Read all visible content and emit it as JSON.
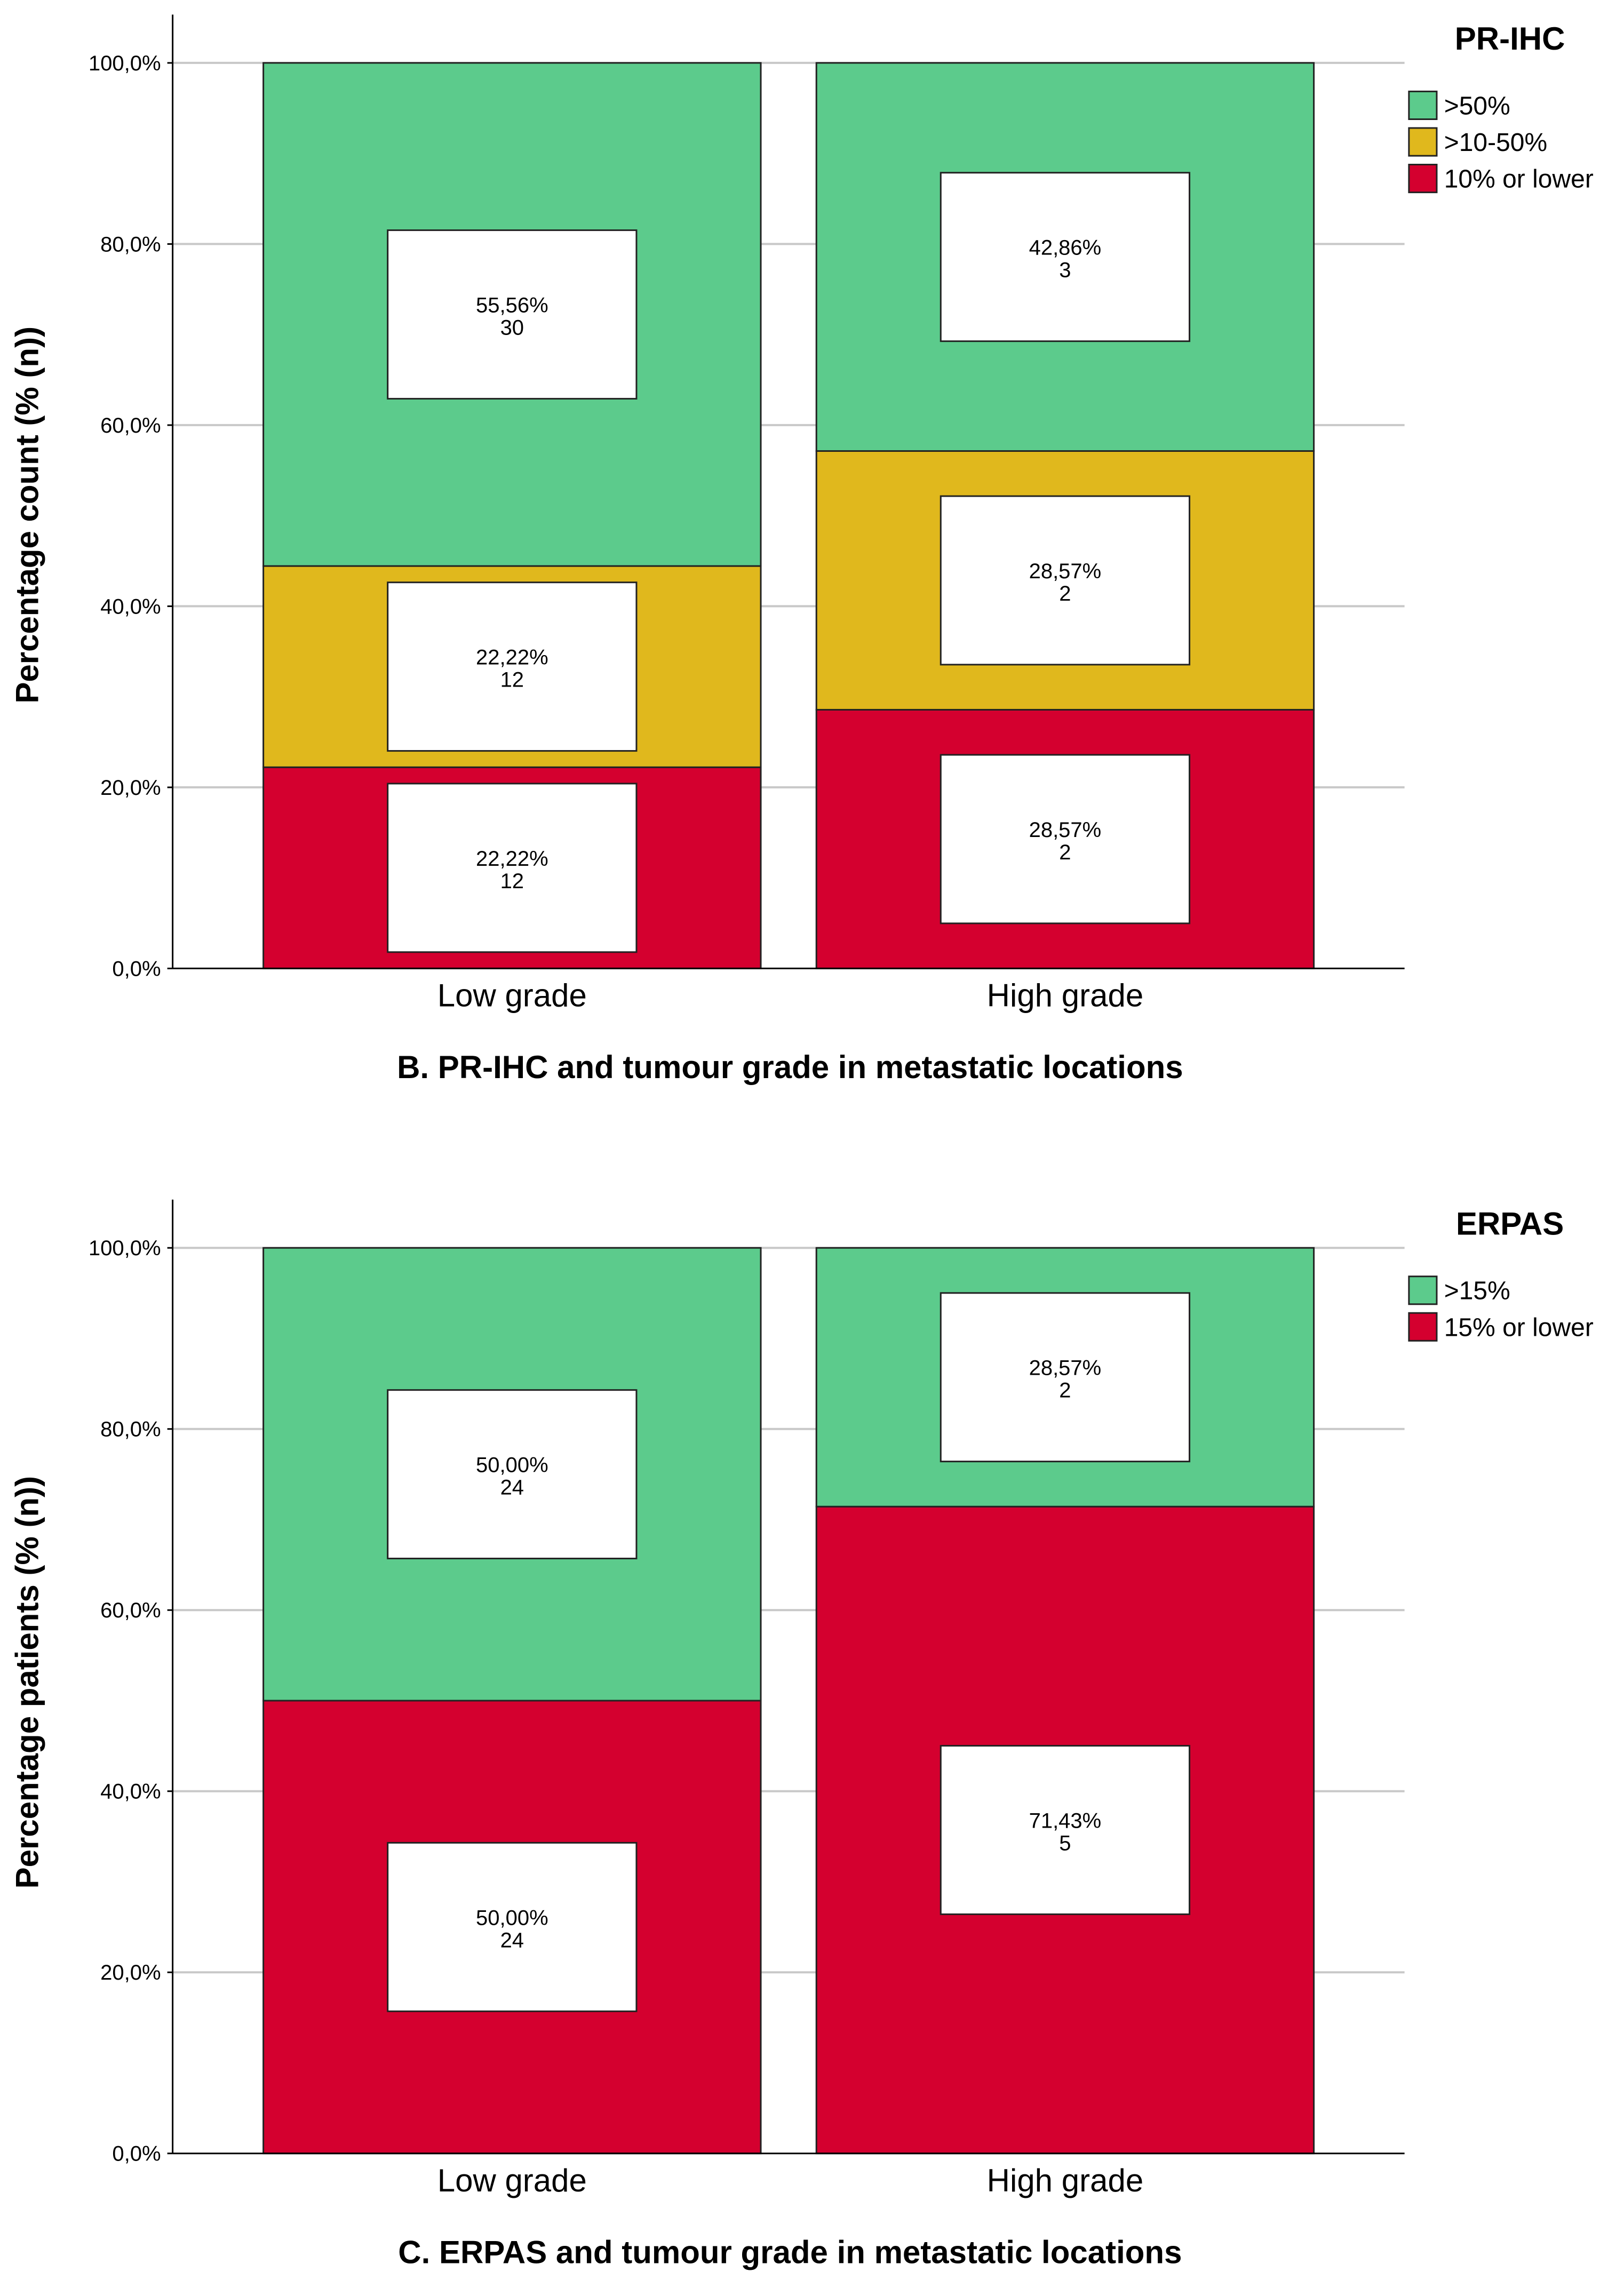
{
  "chart_data": [
    {
      "type": "bar",
      "stacked": true,
      "caption": "B. PR-IHC and tumour grade in metastatic locations",
      "ylabel": "Percentage count (% (n))",
      "ylim": [
        0,
        100
      ],
      "yticks": [
        "0,0%",
        "20,0%",
        "40,0%",
        "60,0%",
        "80,0%",
        "100,0%"
      ],
      "grid": true,
      "legend_title": "PR-IHC",
      "legend_position": "top-right",
      "categories": [
        "Low grade",
        "High grade"
      ],
      "series": [
        {
          "name": "10% or lower",
          "color": "#d4002f",
          "values": [
            22.22,
            28.57
          ],
          "labels": [
            "22,22%",
            "28,57%"
          ],
          "counts": [
            "12",
            "2"
          ]
        },
        {
          "name": ">10-50%",
          "color": "#e0b81d",
          "values": [
            22.22,
            28.57
          ],
          "labels": [
            "22,22%",
            "28,57%"
          ],
          "counts": [
            "12",
            "2"
          ]
        },
        {
          "name": ">50%",
          "color": "#5ccb8c",
          "values": [
            55.56,
            42.86
          ],
          "labels": [
            "55,56%",
            "42,86%"
          ],
          "counts": [
            "30",
            "3"
          ]
        }
      ],
      "legend_order": [
        ">50%",
        ">10-50%",
        "10% or lower"
      ]
    },
    {
      "type": "bar",
      "stacked": true,
      "caption": "C. ERPAS and tumour grade in metastatic locations",
      "ylabel": "Percentage patients (% (n))",
      "ylim": [
        0,
        100
      ],
      "yticks": [
        "0,0%",
        "20,0%",
        "40,0%",
        "60,0%",
        "80,0%",
        "100,0%"
      ],
      "grid": true,
      "legend_title": "ERPAS",
      "legend_position": "top-right",
      "categories": [
        "Low grade",
        "High grade"
      ],
      "series": [
        {
          "name": "15% or lower",
          "color": "#d4002f",
          "values": [
            50.0,
            71.43
          ],
          "labels": [
            "50,00%",
            "71,43%"
          ],
          "counts": [
            "24",
            "5"
          ]
        },
        {
          "name": ">15%",
          "color": "#5ccb8c",
          "values": [
            50.0,
            28.57
          ],
          "labels": [
            "50,00%",
            "28,57%"
          ],
          "counts": [
            "24",
            "2"
          ]
        }
      ],
      "legend_order": [
        ">15%",
        "15% or lower"
      ]
    }
  ]
}
